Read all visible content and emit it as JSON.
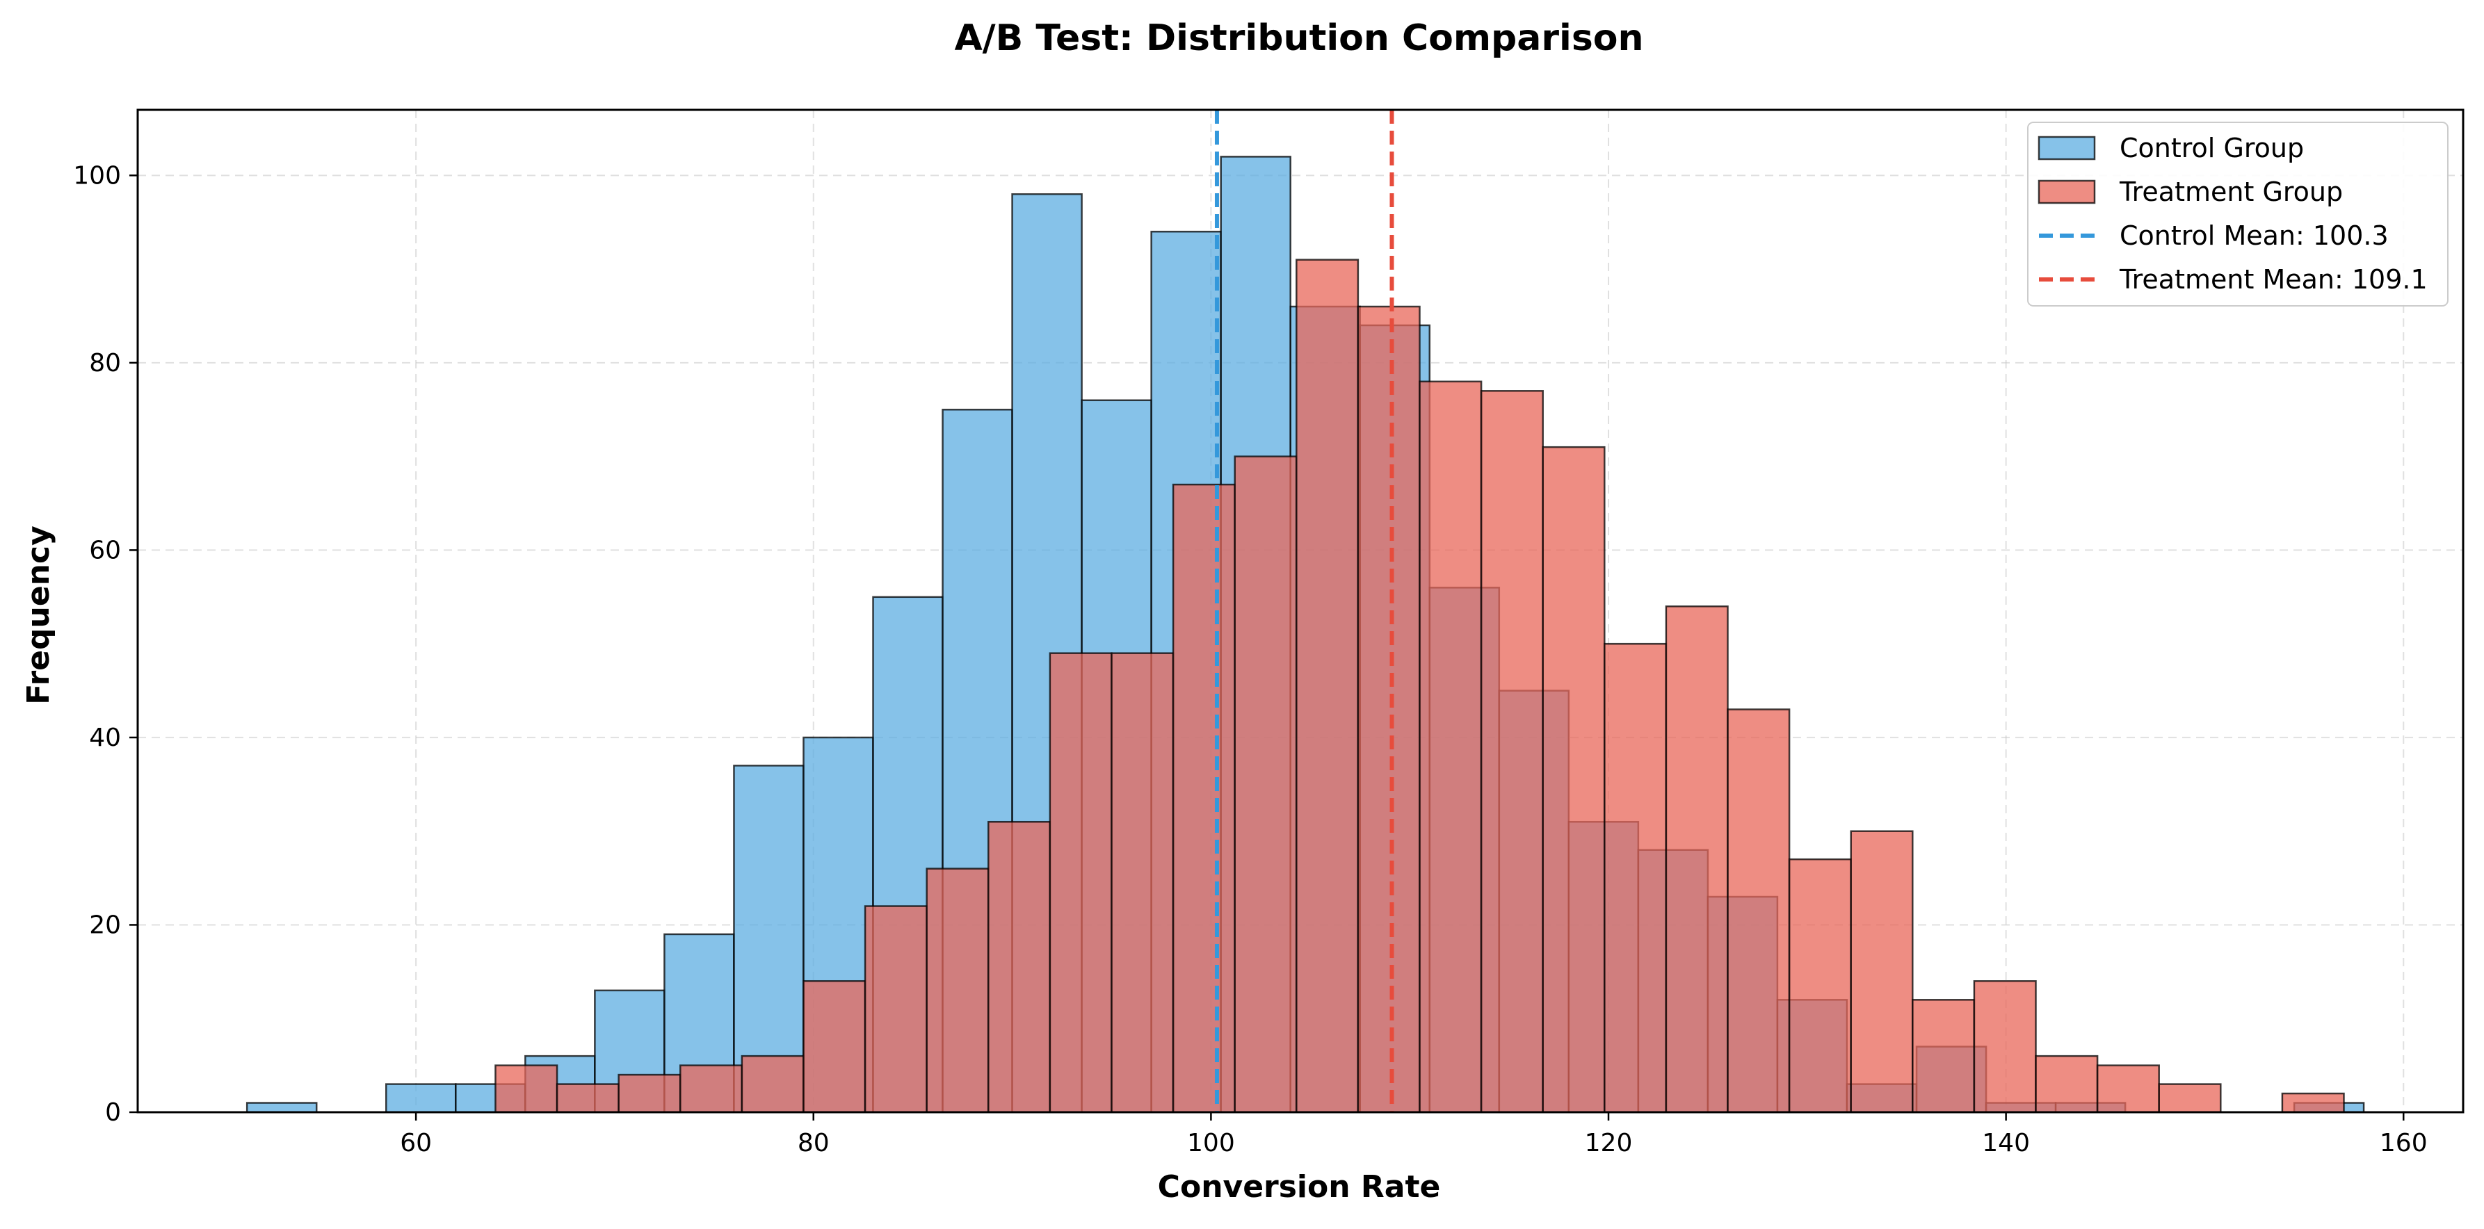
{
  "chart_data": {
    "type": "bar",
    "subtype": "histogram",
    "title": "A/B Test: Distribution Comparison",
    "xlabel": "Conversion Rate",
    "ylabel": "Frequency",
    "xlim": [
      46,
      163
    ],
    "ylim": [
      0,
      107
    ],
    "x_ticks": [
      60,
      80,
      100,
      120,
      140,
      160
    ],
    "y_ticks": [
      0,
      20,
      40,
      60,
      80,
      100
    ],
    "grid": true,
    "legend_position": "top-right",
    "series": [
      {
        "name": "Control Group",
        "color": "#5dade2",
        "bins": [
          {
            "x0": 51.5,
            "x1": 55.0,
            "count": 1
          },
          {
            "x0": 58.5,
            "x1": 62.0,
            "count": 3
          },
          {
            "x0": 62.0,
            "x1": 65.5,
            "count": 3
          },
          {
            "x0": 65.5,
            "x1": 69.0,
            "count": 6
          },
          {
            "x0": 69.0,
            "x1": 72.5,
            "count": 13
          },
          {
            "x0": 72.5,
            "x1": 76.0,
            "count": 19
          },
          {
            "x0": 76.0,
            "x1": 79.5,
            "count": 37
          },
          {
            "x0": 79.5,
            "x1": 83.0,
            "count": 40
          },
          {
            "x0": 83.0,
            "x1": 86.5,
            "count": 55
          },
          {
            "x0": 86.5,
            "x1": 90.0,
            "count": 75
          },
          {
            "x0": 90.0,
            "x1": 93.5,
            "count": 98
          },
          {
            "x0": 93.5,
            "x1": 97.0,
            "count": 76
          },
          {
            "x0": 97.0,
            "x1": 100.5,
            "count": 94
          },
          {
            "x0": 100.5,
            "x1": 104.0,
            "count": 102
          },
          {
            "x0": 104.0,
            "x1": 107.5,
            "count": 86
          },
          {
            "x0": 107.5,
            "x1": 111.0,
            "count": 84
          },
          {
            "x0": 111.0,
            "x1": 114.5,
            "count": 56
          },
          {
            "x0": 114.5,
            "x1": 118.0,
            "count": 45
          },
          {
            "x0": 118.0,
            "x1": 121.5,
            "count": 31
          },
          {
            "x0": 121.5,
            "x1": 125.0,
            "count": 28
          },
          {
            "x0": 125.0,
            "x1": 128.5,
            "count": 23
          },
          {
            "x0": 128.5,
            "x1": 132.0,
            "count": 12
          },
          {
            "x0": 132.0,
            "x1": 135.5,
            "count": 3
          },
          {
            "x0": 135.5,
            "x1": 139.0,
            "count": 7
          },
          {
            "x0": 139.0,
            "x1": 142.5,
            "count": 1
          },
          {
            "x0": 142.5,
            "x1": 146.0,
            "count": 1
          },
          {
            "x0": 154.5,
            "x1": 158.0,
            "count": 1
          }
        ]
      },
      {
        "name": "Treatment Group",
        "color": "#e8675a",
        "bins": [
          {
            "x0": 64.0,
            "x1": 67.1,
            "count": 5
          },
          {
            "x0": 67.1,
            "x1": 70.2,
            "count": 3
          },
          {
            "x0": 70.2,
            "x1": 73.3,
            "count": 4
          },
          {
            "x0": 73.3,
            "x1": 76.4,
            "count": 5
          },
          {
            "x0": 76.4,
            "x1": 79.5,
            "count": 6
          },
          {
            "x0": 79.5,
            "x1": 82.6,
            "count": 14
          },
          {
            "x0": 82.6,
            "x1": 85.7,
            "count": 22
          },
          {
            "x0": 85.7,
            "x1": 88.8,
            "count": 26
          },
          {
            "x0": 88.8,
            "x1": 91.9,
            "count": 31
          },
          {
            "x0": 91.9,
            "x1": 95.0,
            "count": 49
          },
          {
            "x0": 95.0,
            "x1": 98.1,
            "count": 49
          },
          {
            "x0": 98.1,
            "x1": 101.2,
            "count": 67
          },
          {
            "x0": 101.2,
            "x1": 104.3,
            "count": 70
          },
          {
            "x0": 104.3,
            "x1": 107.4,
            "count": 91
          },
          {
            "x0": 107.4,
            "x1": 110.5,
            "count": 86
          },
          {
            "x0": 110.5,
            "x1": 113.6,
            "count": 78
          },
          {
            "x0": 113.6,
            "x1": 116.7,
            "count": 77
          },
          {
            "x0": 116.7,
            "x1": 119.8,
            "count": 71
          },
          {
            "x0": 119.8,
            "x1": 122.9,
            "count": 50
          },
          {
            "x0": 122.9,
            "x1": 126.0,
            "count": 54
          },
          {
            "x0": 126.0,
            "x1": 129.1,
            "count": 43
          },
          {
            "x0": 129.1,
            "x1": 132.2,
            "count": 27
          },
          {
            "x0": 132.2,
            "x1": 135.3,
            "count": 30
          },
          {
            "x0": 135.3,
            "x1": 138.4,
            "count": 12
          },
          {
            "x0": 138.4,
            "x1": 141.5,
            "count": 14
          },
          {
            "x0": 141.5,
            "x1": 144.6,
            "count": 6
          },
          {
            "x0": 144.6,
            "x1": 147.7,
            "count": 5
          },
          {
            "x0": 147.7,
            "x1": 150.8,
            "count": 3
          },
          {
            "x0": 153.9,
            "x1": 157.0,
            "count": 2
          }
        ]
      }
    ],
    "mean_lines": [
      {
        "name": "Control Mean: 100.3",
        "value": 100.3,
        "color": "#3498db",
        "style": "dashed"
      },
      {
        "name": "Treatment Mean: 109.1",
        "value": 109.1,
        "color": "#e74c3c",
        "style": "dashed"
      }
    ],
    "overlap_color": "#b5737b"
  }
}
